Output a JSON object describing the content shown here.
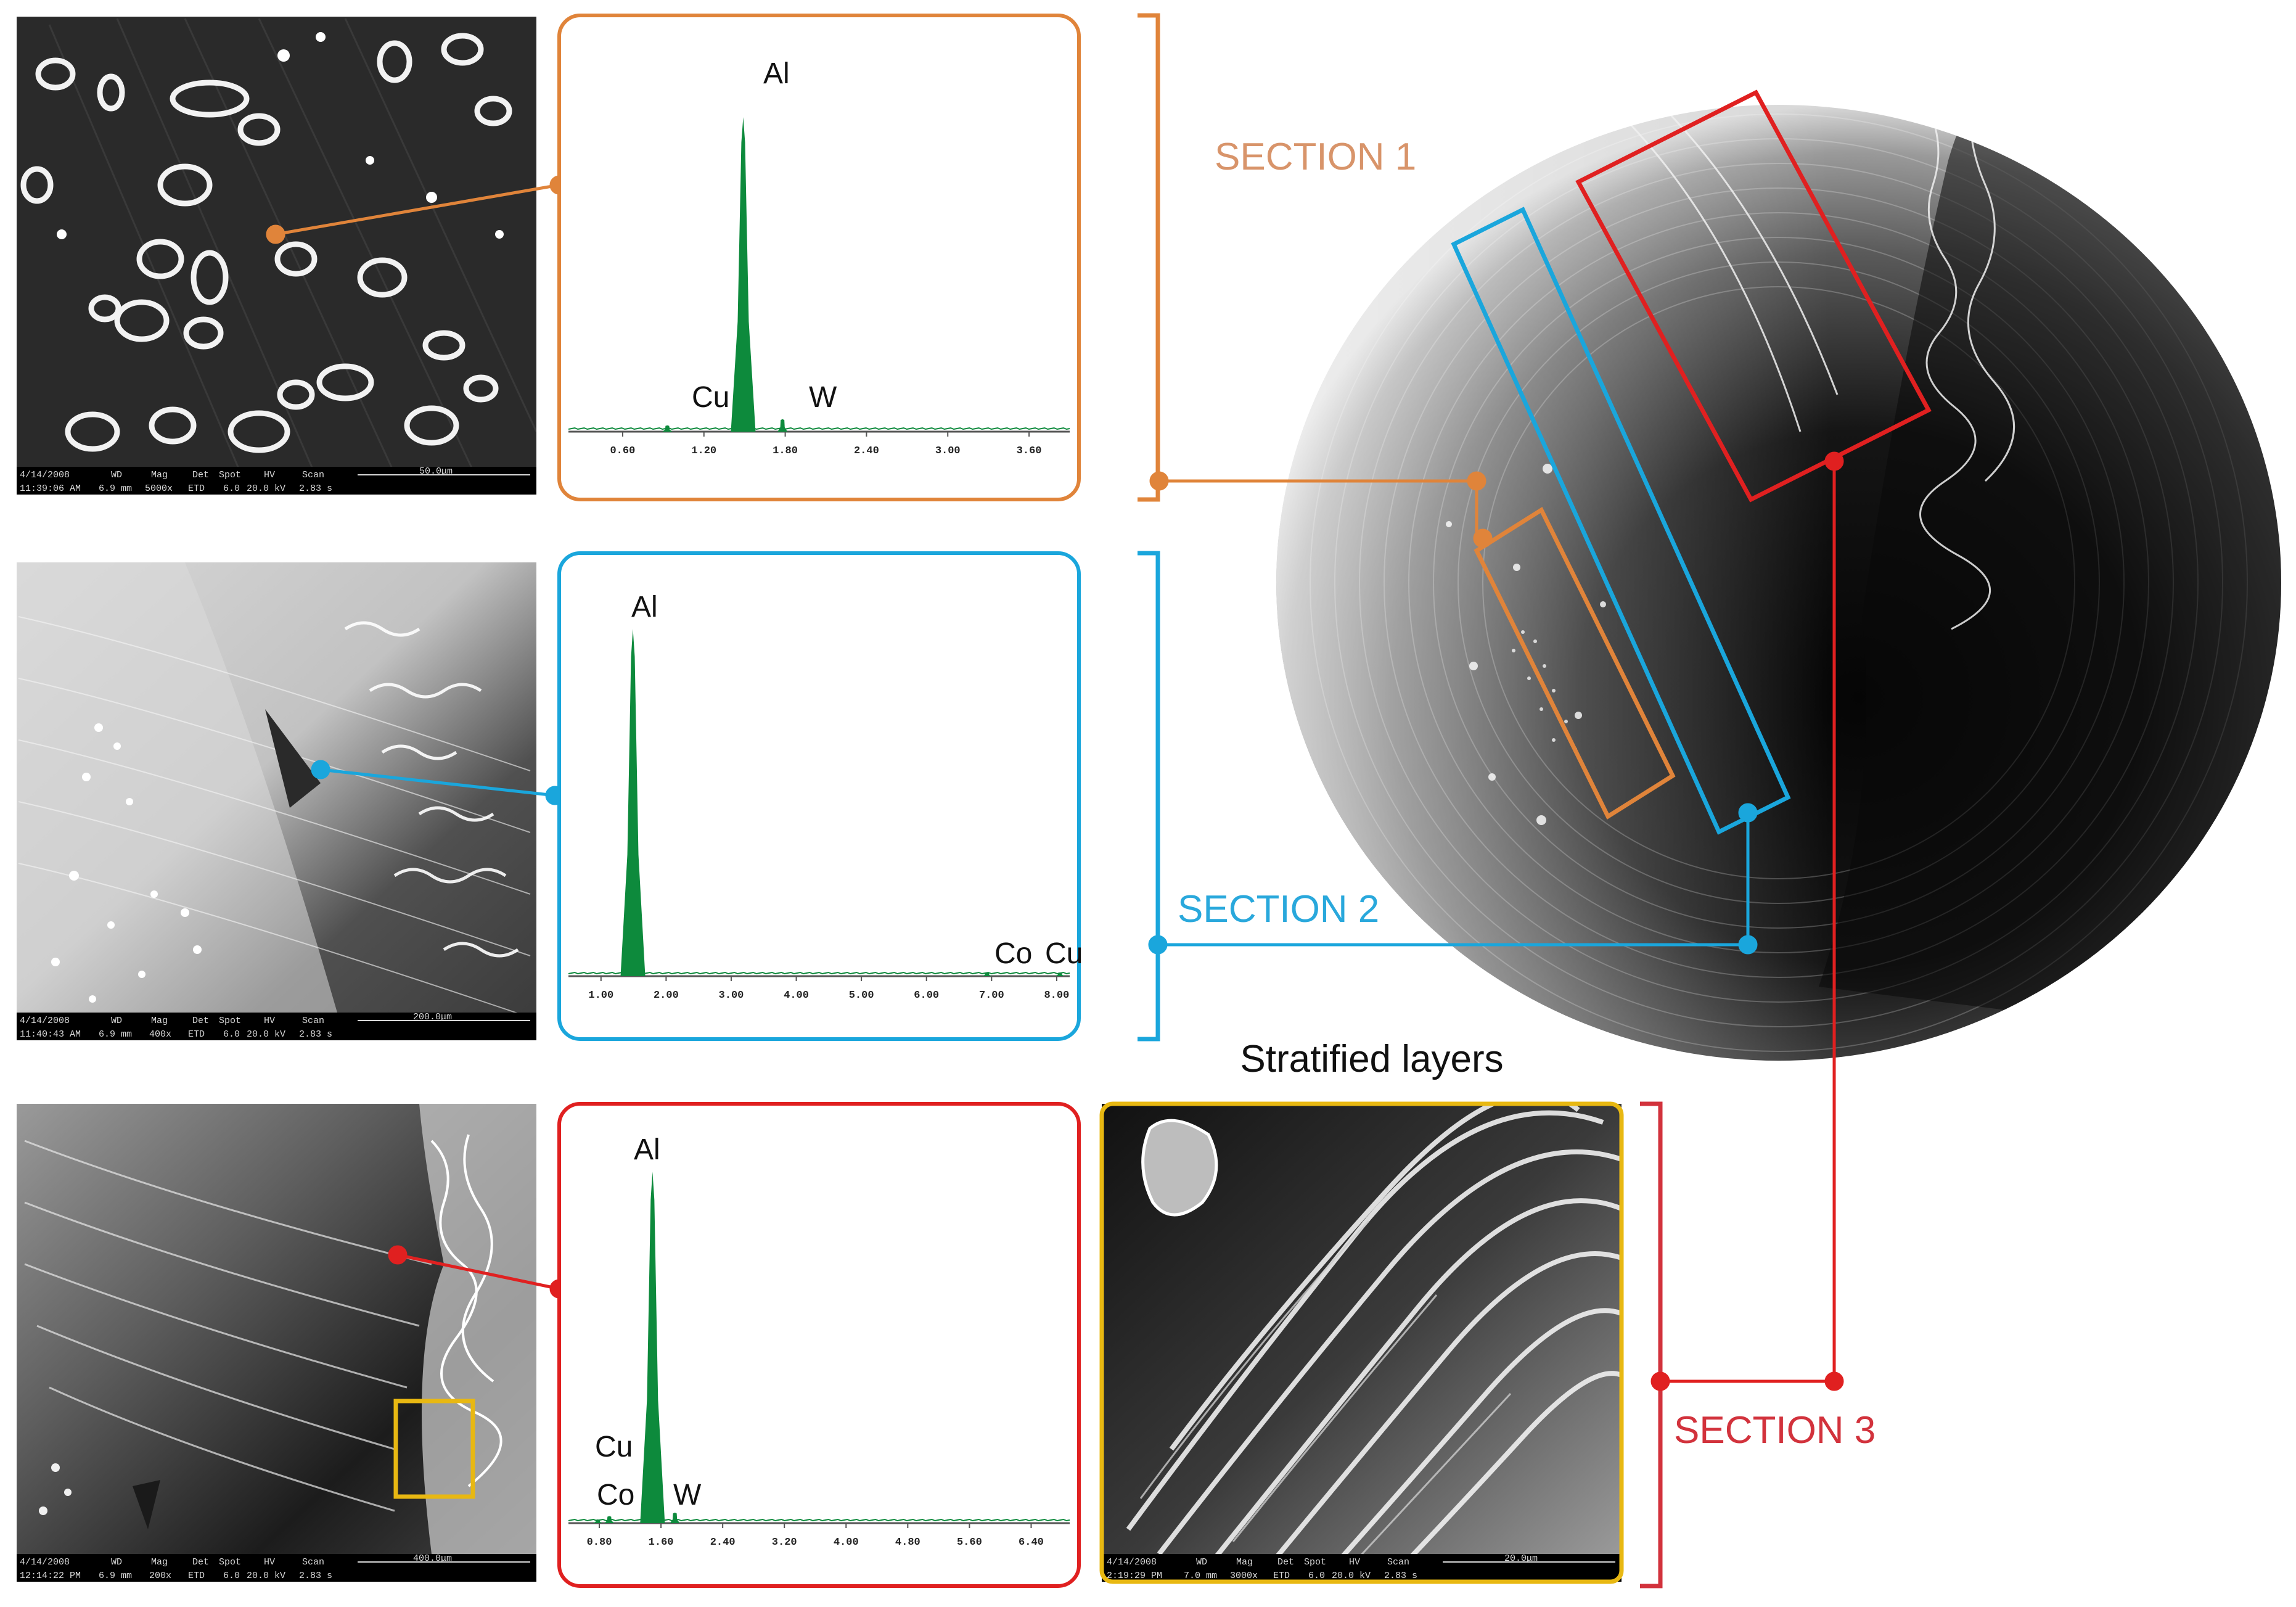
{
  "colors": {
    "section1": "#e0843a",
    "section2": "#1aa6dc",
    "section3": "#e02020",
    "highlight": "#e8b812",
    "peak": "#0d8a3c",
    "label_s1": "#d8946a",
    "label_s2": "#29a8dc",
    "label_s3": "#d2323c"
  },
  "sections": [
    {
      "label": "SECTION 1"
    },
    {
      "label": "SECTION 2"
    },
    {
      "label": "SECTION 3"
    }
  ],
  "stratified_title": "Stratified layers",
  "sem_images": [
    {
      "date": "4/14/2008",
      "time": "11:39:06 AM",
      "wd": "6.9 mm",
      "mag": "5000x",
      "det": "ETD",
      "spot": "6.0",
      "hv": "20.0 kV",
      "scan": "2.83 s",
      "scale": "50.0μm"
    },
    {
      "date": "4/14/2008",
      "time": "11:40:43 AM",
      "wd": "6.9 mm",
      "mag": "400x",
      "det": "ETD",
      "spot": "6.0",
      "hv": "20.0 kV",
      "scan": "2.83 s",
      "scale": "200.0μm"
    },
    {
      "date": "4/14/2008",
      "time": "12:14:22 PM",
      "wd": "6.9 mm",
      "mag": "200x",
      "det": "ETD",
      "spot": "6.0",
      "hv": "20.0 kV",
      "scan": "2.83 s",
      "scale": "400.0μm"
    },
    {
      "date": "4/14/2008",
      "time": "2:19:29 PM",
      "wd": "7.0 mm",
      "mag": "3000x",
      "det": "ETD",
      "spot": "6.0",
      "hv": "20.0 kV",
      "scan": "2.83 s",
      "scale": "20.0μm"
    }
  ],
  "sem_headers": {
    "wd": "WD",
    "mag": "Mag",
    "det": "Det",
    "spot": "Spot",
    "hv": "HV",
    "scan": "Scan"
  },
  "chart_data": [
    {
      "type": "line",
      "series_kind": "EDS spectrum",
      "x_ticks": [
        "0.60",
        "1.20",
        "1.80",
        "2.40",
        "3.00",
        "3.60"
      ],
      "xlim": [
        0.2,
        3.9
      ],
      "peaks": [
        {
          "label": "Cu",
          "x": 0.93,
          "height": 0.02
        },
        {
          "label": "Al",
          "x": 1.49,
          "height": 1.0
        },
        {
          "label": "W",
          "x": 1.78,
          "height": 0.04
        }
      ]
    },
    {
      "type": "line",
      "series_kind": "EDS spectrum",
      "x_ticks": [
        "1.00",
        "2.00",
        "3.00",
        "4.00",
        "5.00",
        "6.00",
        "7.00",
        "8.00"
      ],
      "xlim": [
        0.5,
        8.2
      ],
      "peaks": [
        {
          "label": "Al",
          "x": 1.49,
          "height": 1.0
        },
        {
          "label": "Co",
          "x": 6.93,
          "height": 0.01
        },
        {
          "label": "Cu",
          "x": 8.05,
          "height": 0.01
        }
      ]
    },
    {
      "type": "line",
      "series_kind": "EDS spectrum",
      "x_ticks": [
        "0.80",
        "1.60",
        "2.40",
        "3.20",
        "4.00",
        "4.80",
        "5.60",
        "6.40"
      ],
      "xlim": [
        0.4,
        6.9
      ],
      "peaks": [
        {
          "label": "Cu",
          "x": 0.93,
          "height": 0.02
        },
        {
          "label": "Co",
          "x": 0.78,
          "height": 0.01
        },
        {
          "label": "Al",
          "x": 1.49,
          "height": 1.0
        },
        {
          "label": "W",
          "x": 1.78,
          "height": 0.03
        }
      ]
    }
  ]
}
